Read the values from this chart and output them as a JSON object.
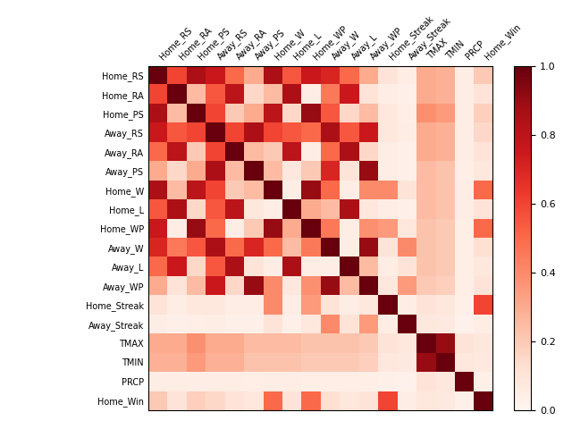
{
  "labels": [
    "Home_RS",
    "Home_RA",
    "Home_PS",
    "Away_RS",
    "Away_RA",
    "Away_PS",
    "Home_W",
    "Home_L",
    "Home_WP",
    "Away_W",
    "Away_L",
    "Away_WP",
    "Home_Streak",
    "Away_Streak",
    "TMAX",
    "TMIN",
    "PRCP",
    "Home_Win"
  ],
  "corr_matrix": [
    [
      1.0,
      0.6,
      0.85,
      0.75,
      0.5,
      0.3,
      0.85,
      0.55,
      0.75,
      0.7,
      0.5,
      0.3,
      0.1,
      0.05,
      0.3,
      0.28,
      0.05,
      0.2
    ],
    [
      0.6,
      1.0,
      0.25,
      0.55,
      0.8,
      0.15,
      0.25,
      0.85,
      0.05,
      0.45,
      0.75,
      0.1,
      0.05,
      0.03,
      0.3,
      0.28,
      0.05,
      0.1
    ],
    [
      0.85,
      0.25,
      1.0,
      0.6,
      0.2,
      0.3,
      0.8,
      0.15,
      0.9,
      0.55,
      0.15,
      0.25,
      0.08,
      0.04,
      0.38,
      0.35,
      0.05,
      0.18
    ],
    [
      0.75,
      0.55,
      0.6,
      1.0,
      0.6,
      0.85,
      0.6,
      0.55,
      0.5,
      0.85,
      0.55,
      0.75,
      0.08,
      0.05,
      0.3,
      0.28,
      0.05,
      0.15
    ],
    [
      0.5,
      0.8,
      0.2,
      0.6,
      1.0,
      0.25,
      0.2,
      0.8,
      0.05,
      0.5,
      0.85,
      0.15,
      0.05,
      0.03,
      0.3,
      0.28,
      0.05,
      0.1
    ],
    [
      0.3,
      0.15,
      0.3,
      0.85,
      0.25,
      1.0,
      0.25,
      0.08,
      0.2,
      0.7,
      0.1,
      0.9,
      0.05,
      0.03,
      0.25,
      0.22,
      0.04,
      0.08
    ],
    [
      0.85,
      0.25,
      0.8,
      0.6,
      0.2,
      0.25,
      1.0,
      0.05,
      0.9,
      0.5,
      0.05,
      0.4,
      0.4,
      0.1,
      0.25,
      0.22,
      0.05,
      0.5
    ],
    [
      0.55,
      0.85,
      0.15,
      0.55,
      0.8,
      0.08,
      0.05,
      1.0,
      0.3,
      0.25,
      0.85,
      0.08,
      0.05,
      0.03,
      0.25,
      0.22,
      0.05,
      0.1
    ],
    [
      0.75,
      0.05,
      0.9,
      0.5,
      0.05,
      0.2,
      0.9,
      0.3,
      1.0,
      0.45,
      0.05,
      0.38,
      0.35,
      0.08,
      0.22,
      0.2,
      0.04,
      0.5
    ],
    [
      0.7,
      0.45,
      0.55,
      0.85,
      0.5,
      0.7,
      0.5,
      0.25,
      0.45,
      1.0,
      0.05,
      0.9,
      0.1,
      0.4,
      0.22,
      0.2,
      0.04,
      0.12
    ],
    [
      0.5,
      0.75,
      0.15,
      0.55,
      0.85,
      0.1,
      0.05,
      0.85,
      0.05,
      0.05,
      1.0,
      0.25,
      0.05,
      0.1,
      0.22,
      0.2,
      0.04,
      0.08
    ],
    [
      0.3,
      0.1,
      0.25,
      0.75,
      0.15,
      0.9,
      0.4,
      0.08,
      0.38,
      0.9,
      0.25,
      1.0,
      0.08,
      0.35,
      0.2,
      0.18,
      0.04,
      0.1
    ],
    [
      0.1,
      0.05,
      0.08,
      0.08,
      0.05,
      0.05,
      0.4,
      0.05,
      0.35,
      0.1,
      0.05,
      0.08,
      1.0,
      0.05,
      0.1,
      0.08,
      0.03,
      0.6
    ],
    [
      0.05,
      0.03,
      0.04,
      0.05,
      0.03,
      0.03,
      0.1,
      0.03,
      0.08,
      0.4,
      0.1,
      0.35,
      0.05,
      1.0,
      0.08,
      0.07,
      0.02,
      0.05
    ],
    [
      0.3,
      0.3,
      0.38,
      0.3,
      0.3,
      0.25,
      0.25,
      0.25,
      0.22,
      0.22,
      0.22,
      0.2,
      0.1,
      0.08,
      1.0,
      0.9,
      0.1,
      0.08
    ],
    [
      0.28,
      0.28,
      0.35,
      0.28,
      0.28,
      0.22,
      0.22,
      0.22,
      0.2,
      0.2,
      0.2,
      0.18,
      0.08,
      0.07,
      0.9,
      1.0,
      0.08,
      0.07
    ],
    [
      0.05,
      0.05,
      0.05,
      0.05,
      0.05,
      0.04,
      0.05,
      0.05,
      0.04,
      0.04,
      0.04,
      0.04,
      0.03,
      0.02,
      0.1,
      0.08,
      1.0,
      0.03
    ],
    [
      0.2,
      0.1,
      0.18,
      0.15,
      0.1,
      0.08,
      0.5,
      0.1,
      0.5,
      0.12,
      0.08,
      0.1,
      0.6,
      0.05,
      0.08,
      0.07,
      0.03,
      1.0
    ]
  ],
  "cmap": "Reds",
  "vmin": 0.0,
  "vmax": 1.0,
  "figsize": [
    6.4,
    4.8
  ],
  "dpi": 100,
  "tick_fontsize": 7.0
}
